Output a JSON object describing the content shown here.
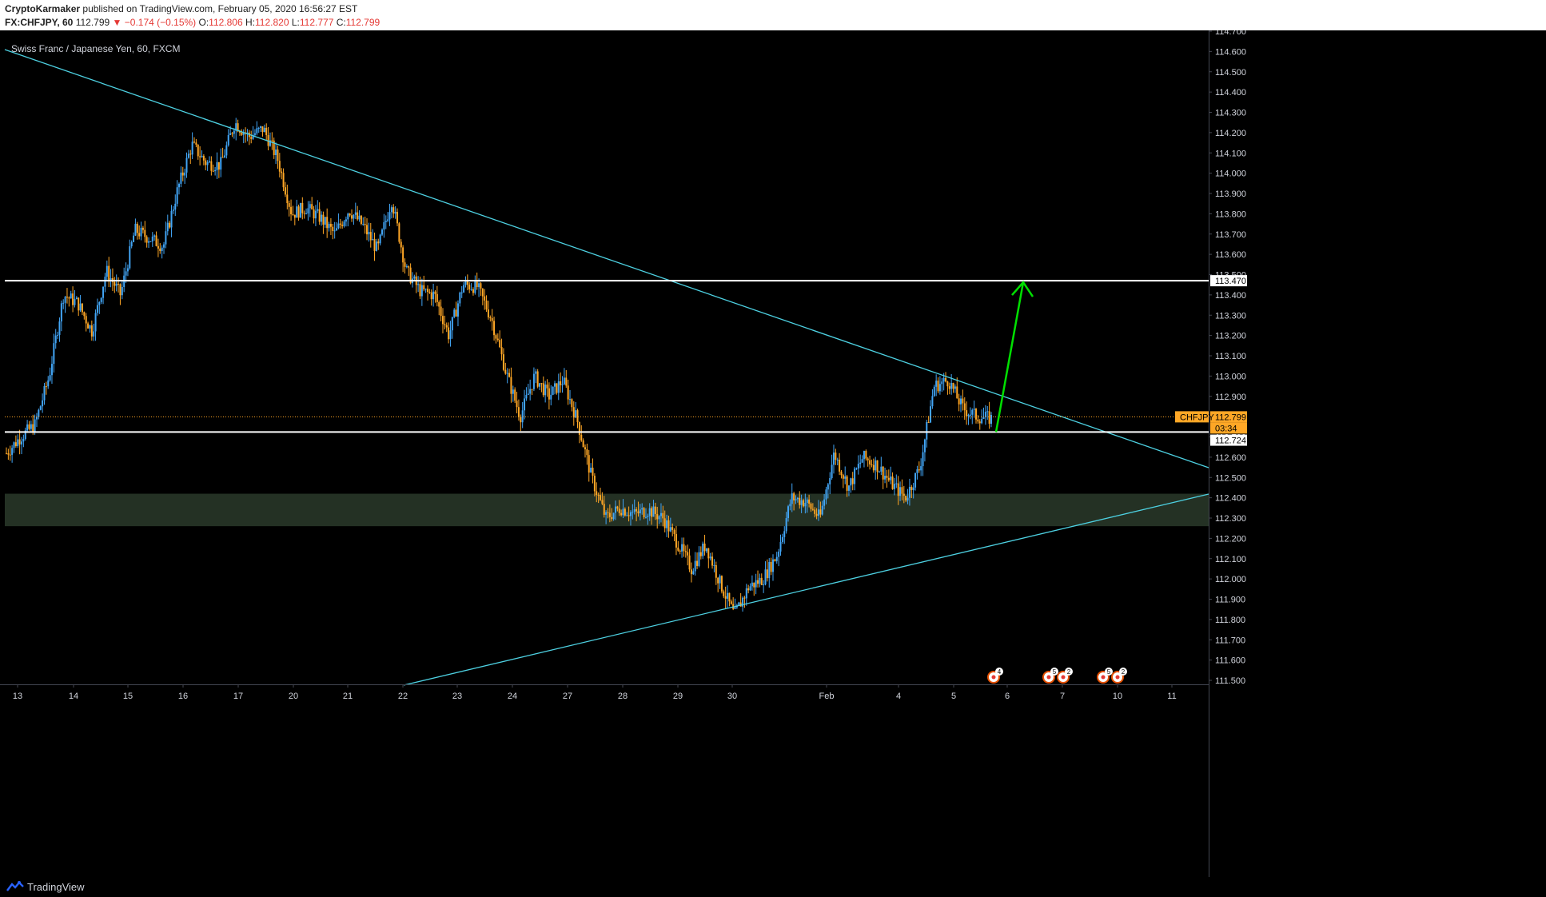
{
  "header": {
    "author": "CryptoKarmaker",
    "published": "published on TradingView.com, February 05, 2020 16:56:27 EST",
    "symbol": "FX:CHFJPY, 60",
    "last": "112.799",
    "change": "▼ −0.174 (−0.15%)",
    "o_label": "O:",
    "o_value": "112.806",
    "h_label": "H:",
    "h_value": "112.820",
    "l_label": "L:",
    "l_value": "112.777",
    "c_label": "C:",
    "c_value": "112.799"
  },
  "chart_title": "Swiss Franc / Japanese Yen, 60, FXCM",
  "footer": {
    "brand": "TradingView",
    "brand_icon": "tradingview-logo-icon"
  },
  "colors": {
    "up": "#42a5f5",
    "down": "#ffa726",
    "trend": "#4dd0e1",
    "arrow": "#00e000",
    "zone": "#2a3a2a",
    "level": "#ffffff"
  },
  "chart_data": {
    "type": "candlestick",
    "title": "Swiss Franc / Japanese Yen, 60, FXCM",
    "symbol": "CHFJPY",
    "ylim": [
      111.46,
      114.72
    ],
    "y_ticks": [
      "114.700",
      "114.600",
      "114.500",
      "114.400",
      "114.300",
      "114.200",
      "114.100",
      "114.000",
      "113.900",
      "113.800",
      "113.700",
      "113.600",
      "113.500",
      "113.400",
      "113.300",
      "113.200",
      "113.100",
      "113.000",
      "112.900",
      "112.800",
      "112.700",
      "112.600",
      "112.500",
      "112.400",
      "112.300",
      "112.200",
      "112.100",
      "112.000",
      "111.900",
      "111.800",
      "111.700",
      "111.600",
      "111.500"
    ],
    "x_ticks": [
      "13",
      "14",
      "15",
      "16",
      "17",
      "20",
      "21",
      "22",
      "23",
      "24",
      "27",
      "28",
      "29",
      "30",
      "Feb",
      "4",
      "5",
      "6",
      "7",
      "10",
      "11"
    ],
    "close_path": [
      112.62,
      112.7,
      112.76,
      113.0,
      113.4,
      113.36,
      113.22,
      113.52,
      113.4,
      113.72,
      113.68,
      113.64,
      113.92,
      114.14,
      114.05,
      114.04,
      114.25,
      114.18,
      114.22,
      114.07,
      113.8,
      113.83,
      113.78,
      113.7,
      113.82,
      113.74,
      113.62,
      113.87,
      113.52,
      113.42,
      113.4,
      113.2,
      113.45,
      113.44,
      113.28,
      113.02,
      112.8,
      113.0,
      112.9,
      112.98,
      112.78,
      112.5,
      112.3,
      112.35,
      112.32,
      112.34,
      112.3,
      112.18,
      112.05,
      112.17,
      111.98,
      111.82,
      111.96,
      112.0,
      112.12,
      112.4,
      112.38,
      112.3,
      112.62,
      112.45,
      112.6,
      112.56,
      112.47,
      112.4,
      112.55,
      112.95,
      112.98,
      112.84,
      112.8,
      112.79
    ],
    "labels": {
      "last_price_symbol": "CHFJPY",
      "last_price": "112.799",
      "countdown": "03:34",
      "support_level": "112.724",
      "resistance_level": "113.470"
    },
    "levels": {
      "resistance": 113.47,
      "support": 112.724,
      "last": 112.799
    },
    "zone": {
      "top": 112.42,
      "bottom": 112.26
    },
    "event_markers": [
      "4",
      "5",
      "2",
      "5",
      "2"
    ],
    "annotations": "two cyan trend lines (descending resistance, ascending support), white horizontal levels, shaded demand zone, green arrow pointing up to 113.470"
  }
}
